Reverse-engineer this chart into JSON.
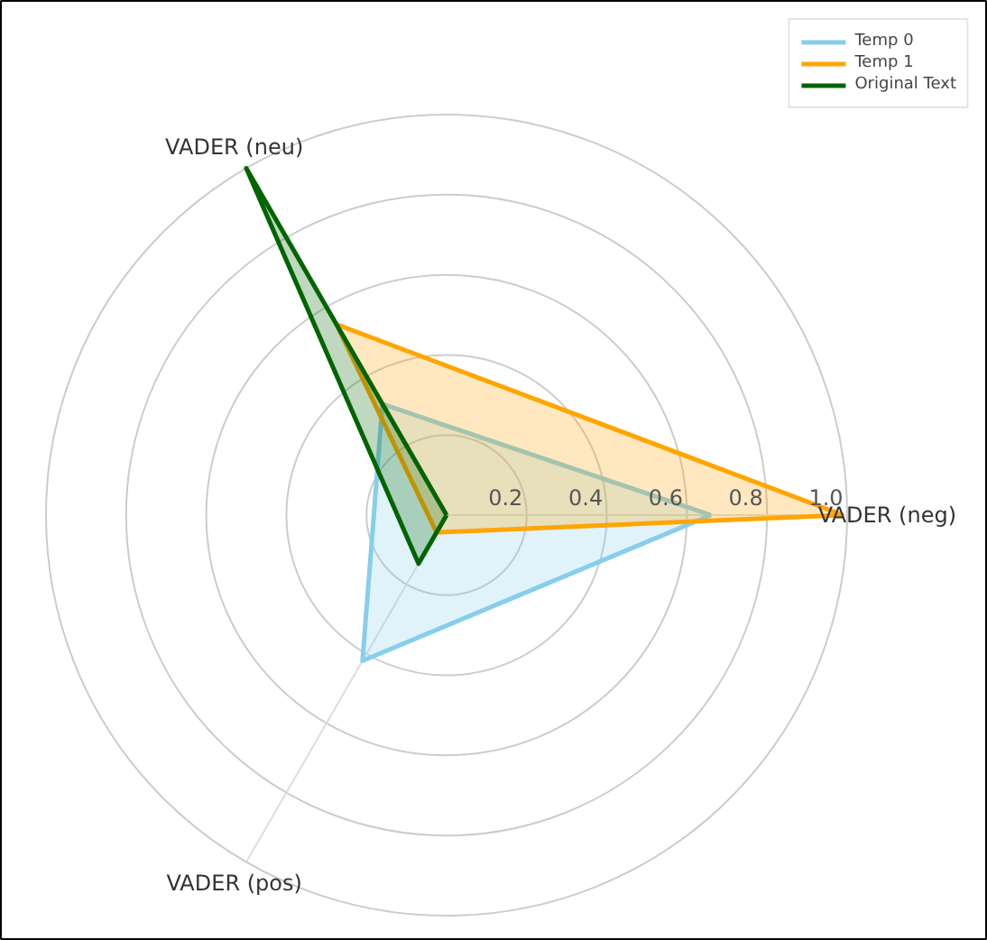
{
  "chart_data": {
    "type": "radar",
    "categories": [
      "VADER (neg)",
      "VADER (pos)",
      "VADER (neu)"
    ],
    "series": [
      {
        "name": "Temp 0",
        "color": "#87ceeb",
        "values": [
          0.66,
          0.42,
          0.32
        ]
      },
      {
        "name": "Temp 1",
        "color": "#ffa500",
        "values": [
          0.99,
          0.05,
          0.55
        ]
      },
      {
        "name": "Original Text",
        "color": "#006400",
        "values": [
          0.0,
          0.14,
          1.0
        ]
      }
    ],
    "ylim": [
      0,
      1
    ],
    "yticks": [
      0.2,
      0.4,
      0.6,
      0.8,
      {
        "value": 1,
        "label": "1.0"
      }
    ],
    "grid": true,
    "legend": "top right"
  }
}
